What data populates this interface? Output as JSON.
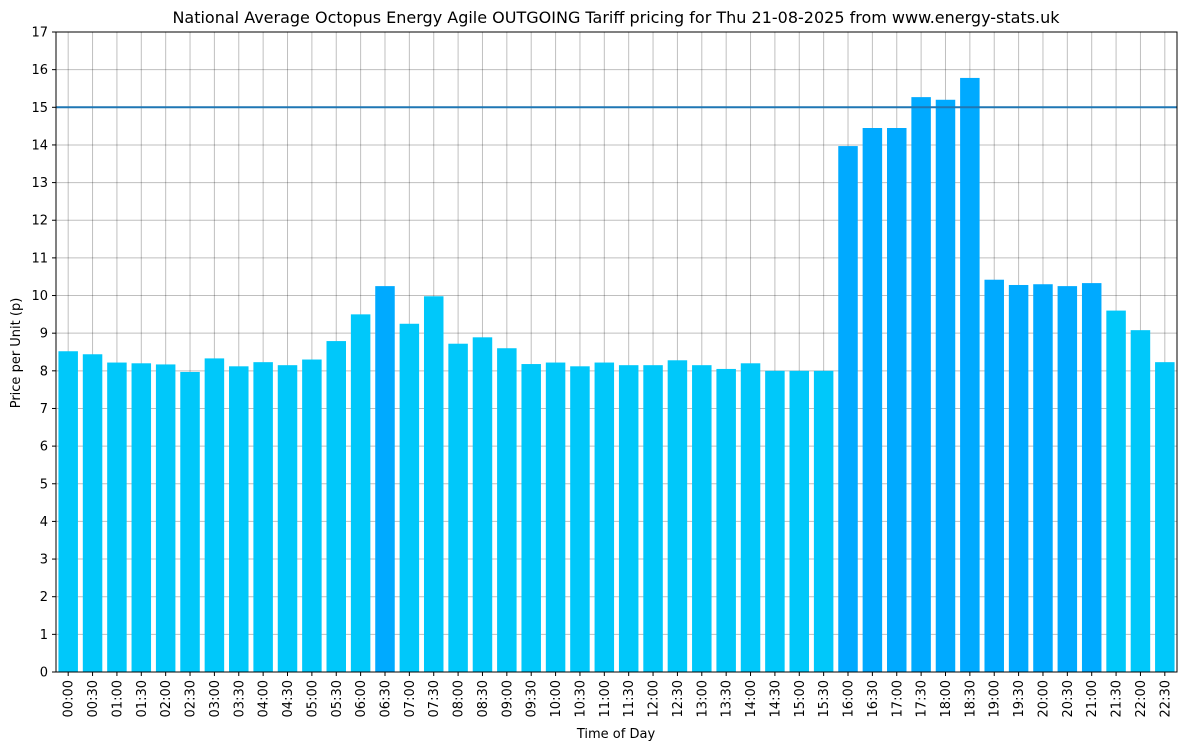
{
  "chart_data": {
    "type": "bar",
    "title": "National Average Octopus Energy Agile OUTGOING Tariff pricing for Thu 21-08-2025 from www.energy-stats.uk",
    "xlabel": "Time of Day",
    "ylabel": "Price per Unit (p)",
    "ylim": [
      0,
      17
    ],
    "yticks": [
      0,
      1,
      2,
      3,
      4,
      5,
      6,
      7,
      8,
      9,
      10,
      11,
      12,
      13,
      14,
      15,
      16,
      17
    ],
    "grid": true,
    "reference_line": {
      "y": 15,
      "color": "#1f77b4"
    },
    "colors": {
      "normal": "#00c8fa",
      "high": "#00aaff"
    },
    "categories": [
      "00:00",
      "00:30",
      "01:00",
      "01:30",
      "02:00",
      "02:30",
      "03:00",
      "03:30",
      "04:00",
      "04:30",
      "05:00",
      "05:30",
      "06:00",
      "06:30",
      "07:00",
      "07:30",
      "08:00",
      "08:30",
      "09:00",
      "09:30",
      "10:00",
      "10:30",
      "11:00",
      "11:30",
      "12:00",
      "12:30",
      "13:00",
      "13:30",
      "14:00",
      "14:30",
      "15:00",
      "15:30",
      "16:00",
      "16:30",
      "17:00",
      "17:30",
      "18:00",
      "18:30",
      "19:00",
      "19:30",
      "20:00",
      "20:30",
      "21:00",
      "21:30",
      "22:00",
      "22:30"
    ],
    "values": [
      8.52,
      8.44,
      8.22,
      8.2,
      8.17,
      7.97,
      8.33,
      8.12,
      8.23,
      8.15,
      8.3,
      8.79,
      9.5,
      10.25,
      9.25,
      9.98,
      8.72,
      8.89,
      8.6,
      8.18,
      8.22,
      8.12,
      8.22,
      8.15,
      8.15,
      8.28,
      8.15,
      8.05,
      8.2,
      8.0,
      8.0,
      8.0,
      13.97,
      14.45,
      14.45,
      15.27,
      15.2,
      15.78,
      10.42,
      10.28,
      10.3,
      10.25,
      10.33,
      9.6,
      9.08,
      8.23
    ],
    "bar_colors": [
      "normal",
      "normal",
      "normal",
      "normal",
      "normal",
      "normal",
      "normal",
      "normal",
      "normal",
      "normal",
      "normal",
      "normal",
      "normal",
      "high",
      "normal",
      "normal",
      "normal",
      "normal",
      "normal",
      "normal",
      "normal",
      "normal",
      "normal",
      "normal",
      "normal",
      "normal",
      "normal",
      "normal",
      "normal",
      "normal",
      "normal",
      "normal",
      "high",
      "high",
      "high",
      "high",
      "high",
      "high",
      "high",
      "high",
      "high",
      "high",
      "high",
      "normal",
      "normal",
      "normal"
    ]
  }
}
